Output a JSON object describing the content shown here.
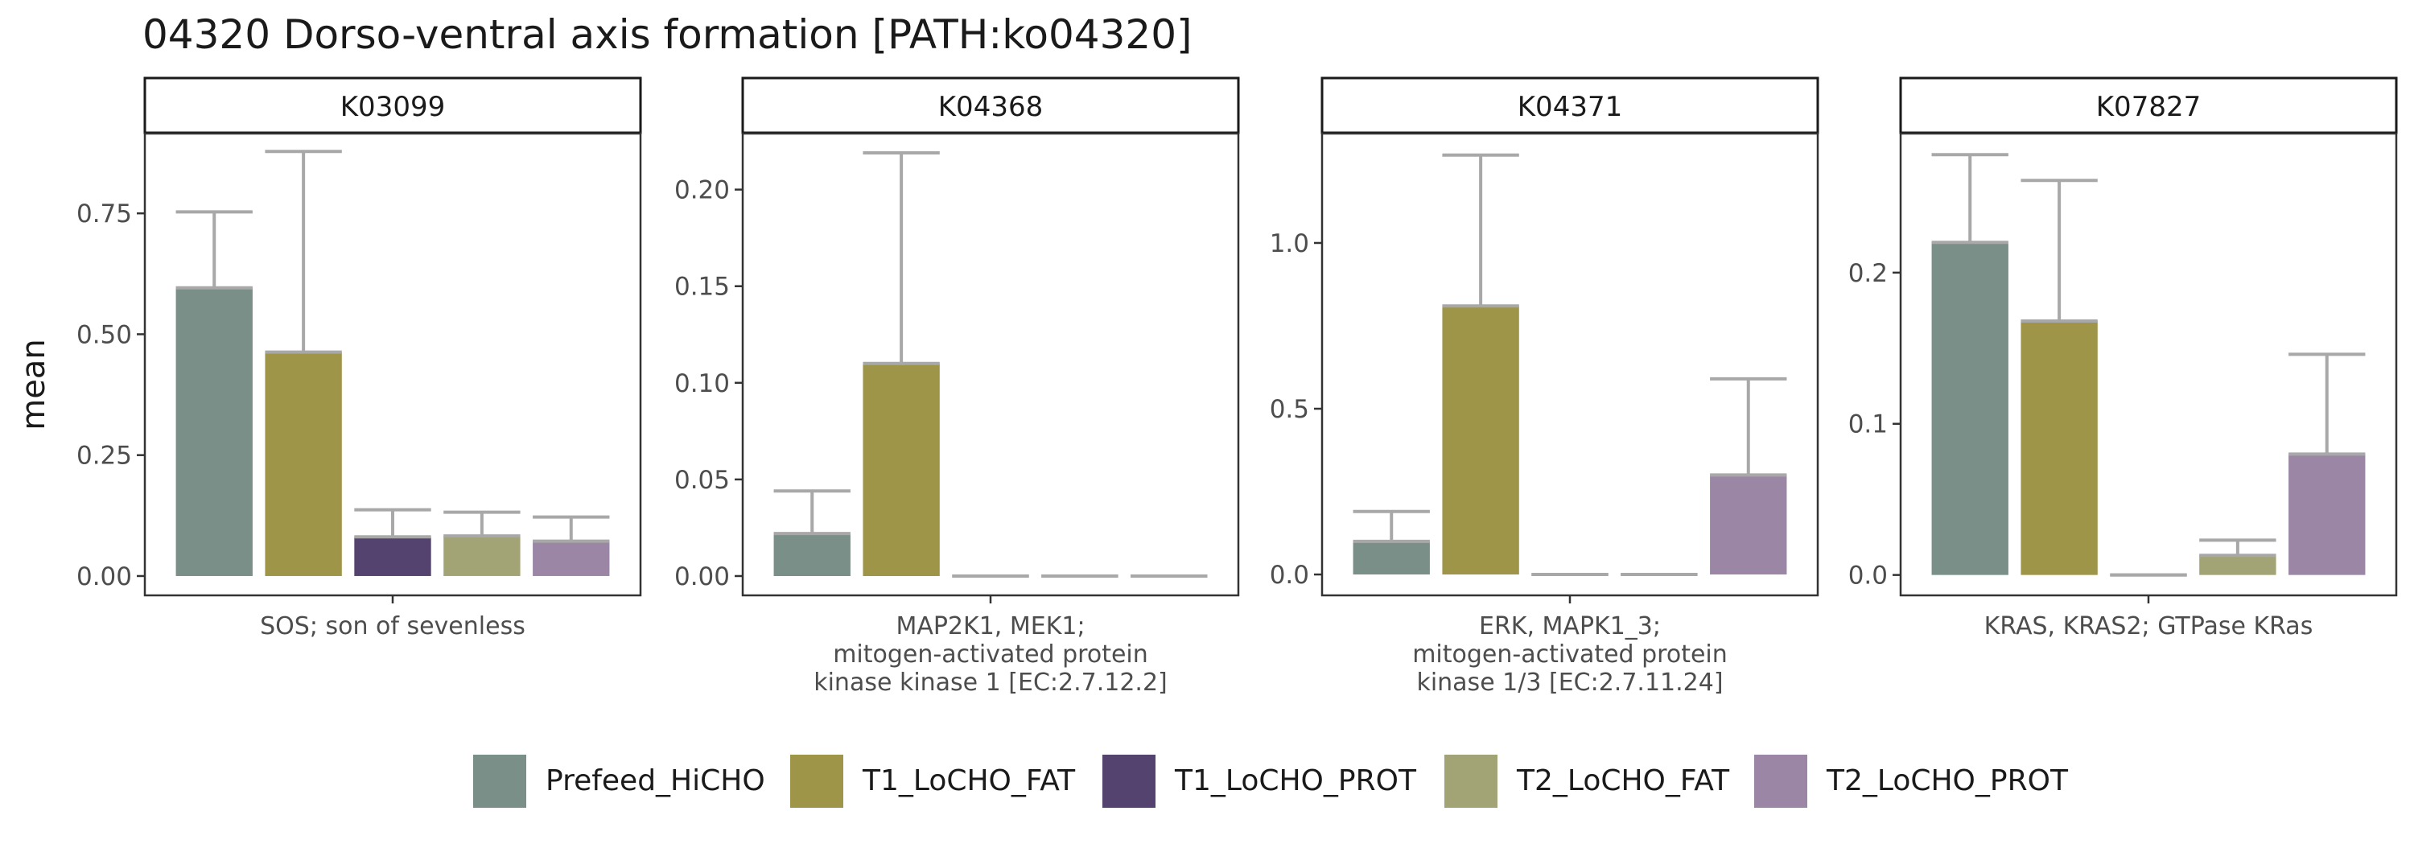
{
  "chart_data": {
    "type": "bar",
    "title": "04320 Dorso-ventral axis formation [PATH:ko04320]",
    "ylabel": "mean",
    "legend_position": "bottom",
    "grid": false,
    "error_bar_color": "#a8a8a8",
    "series": [
      {
        "name": "Prefeed_HiCHO",
        "color": "#7a8f87"
      },
      {
        "name": "T1_LoCHO_FAT",
        "color": "#9e9548"
      },
      {
        "name": "T1_LoCHO_PROT",
        "color": "#55436f"
      },
      {
        "name": "T2_LoCHO_FAT",
        "color": "#a3a476"
      },
      {
        "name": "T2_LoCHO_PROT",
        "color": "#9b87a5"
      }
    ],
    "panels": [
      {
        "strip": "K03099",
        "xlabel": [
          "SOS; son of sevenless"
        ],
        "ylim": [
          -0.04,
          0.915
        ],
        "yticks": [
          0.0,
          0.25,
          0.5,
          0.75
        ],
        "ytick_labels": [
          "0.00",
          "0.25",
          "0.50",
          "0.75"
        ],
        "values": [
          0.596,
          0.463,
          0.081,
          0.083,
          0.072
        ],
        "err_upper": [
          0.753,
          0.878,
          0.137,
          0.132,
          0.122
        ]
      },
      {
        "strip": "K04368",
        "xlabel": [
          "MAP2K1, MEK1;",
          "mitogen-activated protein",
          "kinase kinase 1 [EC:2.7.12.2]"
        ],
        "ylim": [
          -0.01,
          0.229
        ],
        "yticks": [
          0.0,
          0.05,
          0.1,
          0.15,
          0.2
        ],
        "ytick_labels": [
          "0.00",
          "0.05",
          "0.10",
          "0.15",
          "0.20"
        ],
        "values": [
          0.022,
          0.11,
          0.0,
          0.0,
          0.0
        ],
        "err_upper": [
          0.044,
          0.219,
          0.0,
          0.0,
          0.0
        ]
      },
      {
        "strip": "K04371",
        "xlabel": [
          "ERK, MAPK1_3;",
          "mitogen-activated protein",
          "kinase 1/3 [EC:2.7.11.24]"
        ],
        "ylim": [
          -0.063,
          1.33
        ],
        "yticks": [
          0.0,
          0.5,
          1.0
        ],
        "ytick_labels": [
          "0.0",
          "0.5",
          "1.0"
        ],
        "values": [
          0.1,
          0.81,
          0.0,
          0.0,
          0.3
        ],
        "err_upper": [
          0.19,
          1.265,
          0.0,
          0.0,
          0.59
        ]
      },
      {
        "strip": "K07827",
        "xlabel": [
          "KRAS, KRAS2; GTPase KRas"
        ],
        "ylim": [
          -0.0135,
          0.292
        ],
        "yticks": [
          0.0,
          0.1,
          0.2
        ],
        "ytick_labels": [
          "0.0",
          "0.1",
          "0.2"
        ],
        "values": [
          0.22,
          0.168,
          0.0,
          0.013,
          0.08
        ],
        "err_upper": [
          0.278,
          0.261,
          0.0,
          0.023,
          0.146
        ]
      }
    ]
  }
}
